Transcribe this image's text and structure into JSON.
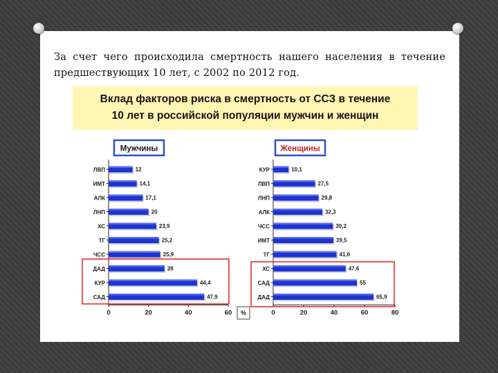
{
  "heading": "За счет чего происходила смертность нашего населения в течение предшествующих 10 лет, с 2002 по 2012 год.",
  "chart_title_line1": "Вклад факторов риска в смертность от ССЗ в течение",
  "chart_title_line2": "10 лет в российской популяции мужчин и женщин",
  "colors": {
    "bar": "#1d34d0",
    "highlight_box": "#e02020",
    "title_bg": "#fff6b4"
  },
  "chart_data": [
    {
      "type": "bar",
      "orientation": "horizontal",
      "panel_label": "Мужчины",
      "categories": [
        "ЛВП",
        "ИМТ",
        "АЛК",
        "ЛНП",
        "ХС",
        "ТГ",
        "ЧСС",
        "ДАД",
        "КУР",
        "САД"
      ],
      "values": [
        12,
        14.1,
        17.1,
        20,
        23.9,
        25.2,
        25.9,
        28,
        44.4,
        47.9
      ],
      "value_labels": [
        "12",
        "14,1",
        "17,1",
        "20",
        "23,9",
        "25,2",
        "25,9",
        "28",
        "44,4",
        "47,9"
      ],
      "xlim": [
        0,
        60
      ],
      "xticks": [
        "0",
        "20",
        "40",
        "60"
      ],
      "xlabel": "%",
      "highlighted_categories": [
        "ДАД",
        "КУР",
        "САД"
      ]
    },
    {
      "type": "bar",
      "orientation": "horizontal",
      "panel_label": "Женщины",
      "categories": [
        "КУР",
        "ЛВП",
        "ЛНП",
        "АЛК",
        "ЧСС",
        "ИМТ",
        "ТГ",
        "ХС",
        "САД",
        "ДАД"
      ],
      "values": [
        10.1,
        27.5,
        29.8,
        32.3,
        39.2,
        39.5,
        41.6,
        47.6,
        55,
        65.9
      ],
      "value_labels": [
        "10,1",
        "27,5",
        "29,8",
        "32,3",
        "39,2",
        "39,5",
        "41,6",
        "47,6",
        "55",
        "65,9"
      ],
      "xlim": [
        0,
        80
      ],
      "xticks": [
        "0",
        "20",
        "40",
        "60",
        "80"
      ],
      "highlighted_categories": [
        "ХС",
        "САД",
        "ДАД"
      ]
    }
  ]
}
